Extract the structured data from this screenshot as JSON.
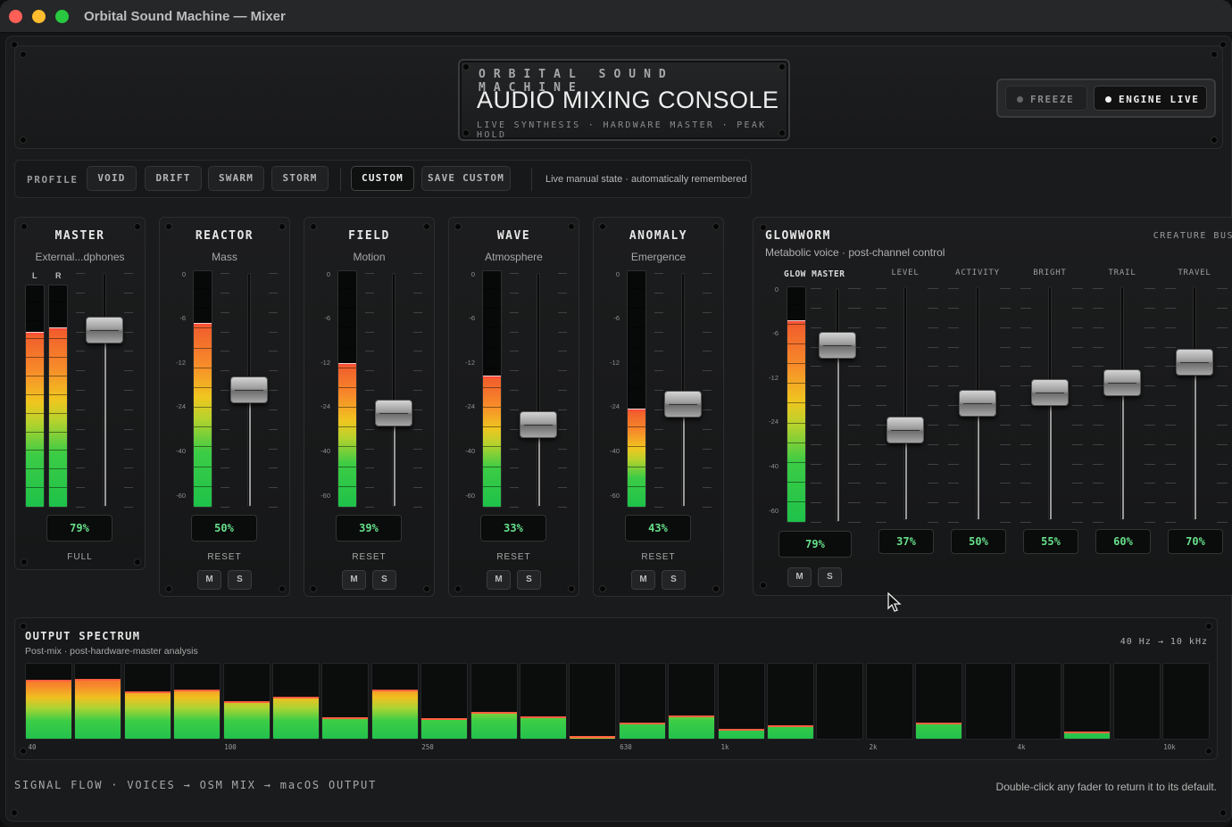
{
  "window": {
    "title": "Orbital Sound Machine — Mixer"
  },
  "header": {
    "brand": "ORBITAL SOUND MACHINE",
    "title": "AUDIO MIXING CONSOLE",
    "subtitle": "LIVE SYNTHESIS · HARDWARE MASTER · PEAK HOLD",
    "freeze_label": "FREEZE",
    "engine_label": "ENGINE LIVE"
  },
  "profile": {
    "label": "PROFILE",
    "buttons": [
      "VOID",
      "DRIFT",
      "SWARM",
      "STORM"
    ],
    "custom_label": "CUSTOM",
    "save_label": "SAVE CUSTOM",
    "note": "Live manual state · automatically remembered"
  },
  "scale_labels": [
    "0",
    "-6",
    "-12",
    "-24",
    "-40",
    "-60"
  ],
  "master": {
    "name": "MASTER",
    "device": "External...dphones",
    "left_label": "L",
    "right_label": "R",
    "meter_left": 0.78,
    "meter_right": 0.8,
    "fader": 0.79,
    "value": "79%",
    "mode": "FULL"
  },
  "channels": [
    {
      "name": "REACTOR",
      "sub": "Mass",
      "meter": 0.77,
      "fader": 0.5,
      "value": "50%",
      "reset": "RESET",
      "mute": "M",
      "solo": "S"
    },
    {
      "name": "FIELD",
      "sub": "Motion",
      "meter": 0.6,
      "fader": 0.39,
      "value": "39%",
      "reset": "RESET",
      "mute": "M",
      "solo": "S"
    },
    {
      "name": "WAVE",
      "sub": "Atmosphere",
      "meter": 0.55,
      "fader": 0.33,
      "value": "33%",
      "reset": "RESET",
      "mute": "M",
      "solo": "S"
    },
    {
      "name": "ANOMALY",
      "sub": "Emergence",
      "meter": 0.41,
      "fader": 0.43,
      "value": "43%",
      "reset": "RESET",
      "mute": "M",
      "solo": "S"
    }
  ],
  "glowworm": {
    "name": "GLOWWORM",
    "bus": "CREATURE BUS",
    "sub": "Metabolic voice · post-channel control",
    "master_label": "GLOW MASTER",
    "master_meter": 0.85,
    "master_fader": 0.79,
    "master_value": "79%",
    "mute": "M",
    "solo": "S",
    "controls": [
      {
        "label": "LEVEL",
        "fader": 0.37,
        "value": "37%"
      },
      {
        "label": "ACTIVITY",
        "fader": 0.5,
        "value": "50%"
      },
      {
        "label": "BRIGHT",
        "fader": 0.55,
        "value": "55%"
      },
      {
        "label": "TRAIL",
        "fader": 0.6,
        "value": "60%"
      },
      {
        "label": "TRAVEL",
        "fader": 0.7,
        "value": "70%"
      }
    ]
  },
  "spectrum": {
    "title": "OUTPUT SPECTRUM",
    "sub": "Post-mix · post-hardware-master analysis",
    "range": "40 Hz → 10 kHz",
    "bands": [
      0.78,
      0.8,
      0.63,
      0.65,
      0.5,
      0.56,
      0.28,
      0.65,
      0.27,
      0.36,
      0.3,
      0.04,
      0.22,
      0.31,
      0.13,
      0.18,
      0.0,
      0.0,
      0.22,
      0.0,
      0.0,
      0.1,
      0.0,
      0.0
    ],
    "freq_labels": [
      {
        "label": "40",
        "band": 0
      },
      {
        "label": "100",
        "band": 4
      },
      {
        "label": "250",
        "band": 8
      },
      {
        "label": "630",
        "band": 12
      },
      {
        "label": "1k",
        "band": 14
      },
      {
        "label": "2k",
        "band": 17
      },
      {
        "label": "4k",
        "band": 20
      },
      {
        "label": "10k",
        "band": 23
      }
    ]
  },
  "footer": {
    "signal_flow": "SIGNAL FLOW · VOICES → OSM MIX → macOS OUTPUT",
    "hint": "Double-click any fader to return it to its default."
  },
  "colors": {
    "accent_green": "#66e08a",
    "peak_red": "#ff4c3a",
    "panel": "#1a1b1c"
  }
}
